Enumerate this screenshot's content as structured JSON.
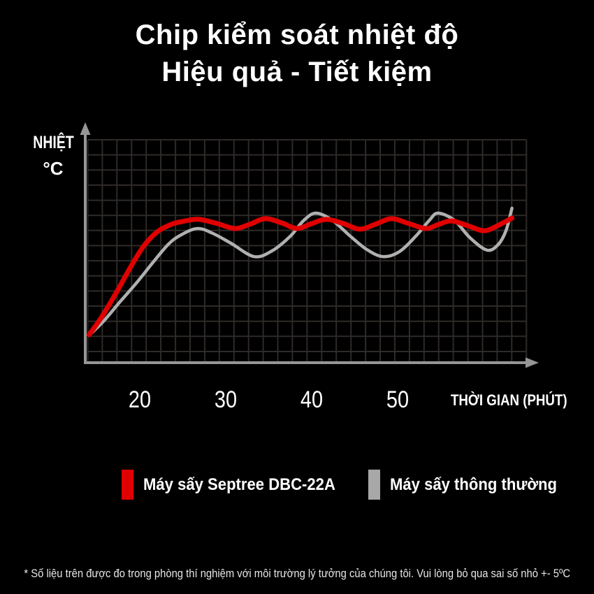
{
  "title": {
    "line1": "Chip kiểm soát nhiệt độ",
    "line2": "Hiệu quả - Tiết kiệm"
  },
  "axes": {
    "y_label_line1": "NHIỆT",
    "y_label_line2": "°C",
    "x_label": "THỜI GIAN (PHÚT)",
    "x_ticks": [
      "20",
      "30",
      "40",
      "50"
    ]
  },
  "legend": {
    "items": [
      {
        "label": "Máy sấy Septree DBC-22A",
        "color": "#e00000"
      },
      {
        "label": "Máy sấy thông thường",
        "color": "#a8a8a8"
      }
    ]
  },
  "footnote": "* Số liệu trên được đo trong phòng thí nghiệm với môi trường lý tưởng của chúng tôi. Vui lòng bỏ qua sai số nhỏ +- 5ºC",
  "colors": {
    "background": "#000000",
    "title_text": "#ffffff",
    "grid": "#2e2a28",
    "axis": "#969696",
    "series_red": "#e00000",
    "series_gray": "#b0b0b0",
    "footnote_text": "#e6e6e6"
  },
  "chart_data": {
    "type": "line",
    "title": "Chip kiểm soát nhiệt độ — Hiệu quả - Tiết kiệm",
    "xlabel": "THỜI GIAN (PHÚT)",
    "ylabel": "NHIỆT °C",
    "x_ticks": [
      20,
      30,
      40,
      50
    ],
    "x_range": [
      14,
      64
    ],
    "y_range": [
      0,
      100
    ],
    "grid": true,
    "legend_position": "bottom",
    "note": "y values are relative temperature (percent of axis height); no numeric y ticks shown in figure",
    "series": [
      {
        "name": "Máy sấy Septree DBC-22A",
        "color": "#e00000",
        "points": [
          [
            14.1,
            12.5
          ],
          [
            15.5,
            20.1
          ],
          [
            17.2,
            31.0
          ],
          [
            18.8,
            42.0
          ],
          [
            20.4,
            52.0
          ],
          [
            22.0,
            58.6
          ],
          [
            23.7,
            62.1
          ],
          [
            25.3,
            63.6
          ],
          [
            26.9,
            64.3
          ],
          [
            29.0,
            62.4
          ],
          [
            31.1,
            60.2
          ],
          [
            32.8,
            62.1
          ],
          [
            34.6,
            64.6
          ],
          [
            36.5,
            62.7
          ],
          [
            38.3,
            60.2
          ],
          [
            40.0,
            62.4
          ],
          [
            41.7,
            64.3
          ],
          [
            43.7,
            62.4
          ],
          [
            45.6,
            59.9
          ],
          [
            47.4,
            62.1
          ],
          [
            49.3,
            64.6
          ],
          [
            51.3,
            62.4
          ],
          [
            53.3,
            60.2
          ],
          [
            54.8,
            62.1
          ],
          [
            56.3,
            63.6
          ],
          [
            58.2,
            61.4
          ],
          [
            60.1,
            59.2
          ],
          [
            61.8,
            61.8
          ],
          [
            63.3,
            64.9
          ]
        ]
      },
      {
        "name": "Máy sấy thông thường",
        "color": "#b0b0b0",
        "points": [
          [
            14.1,
            12.2
          ],
          [
            15.9,
            19.1
          ],
          [
            17.7,
            27.3
          ],
          [
            19.6,
            35.7
          ],
          [
            21.5,
            44.8
          ],
          [
            23.3,
            53.0
          ],
          [
            24.7,
            57.1
          ],
          [
            26.7,
            60.2
          ],
          [
            28.5,
            58.0
          ],
          [
            30.6,
            53.6
          ],
          [
            33.3,
            47.6
          ],
          [
            35.4,
            50.2
          ],
          [
            37.5,
            56.7
          ],
          [
            39.1,
            63.9
          ],
          [
            40.5,
            67.1
          ],
          [
            42.4,
            63.9
          ],
          [
            44.4,
            57.1
          ],
          [
            46.4,
            50.8
          ],
          [
            48.3,
            47.6
          ],
          [
            50.2,
            49.8
          ],
          [
            52.1,
            56.7
          ],
          [
            53.7,
            63.9
          ],
          [
            54.7,
            67.1
          ],
          [
            56.6,
            63.9
          ],
          [
            58.4,
            56.1
          ],
          [
            60.4,
            50.5
          ],
          [
            61.7,
            53.0
          ],
          [
            62.6,
            59.2
          ],
          [
            63.3,
            69.3
          ]
        ]
      }
    ]
  }
}
